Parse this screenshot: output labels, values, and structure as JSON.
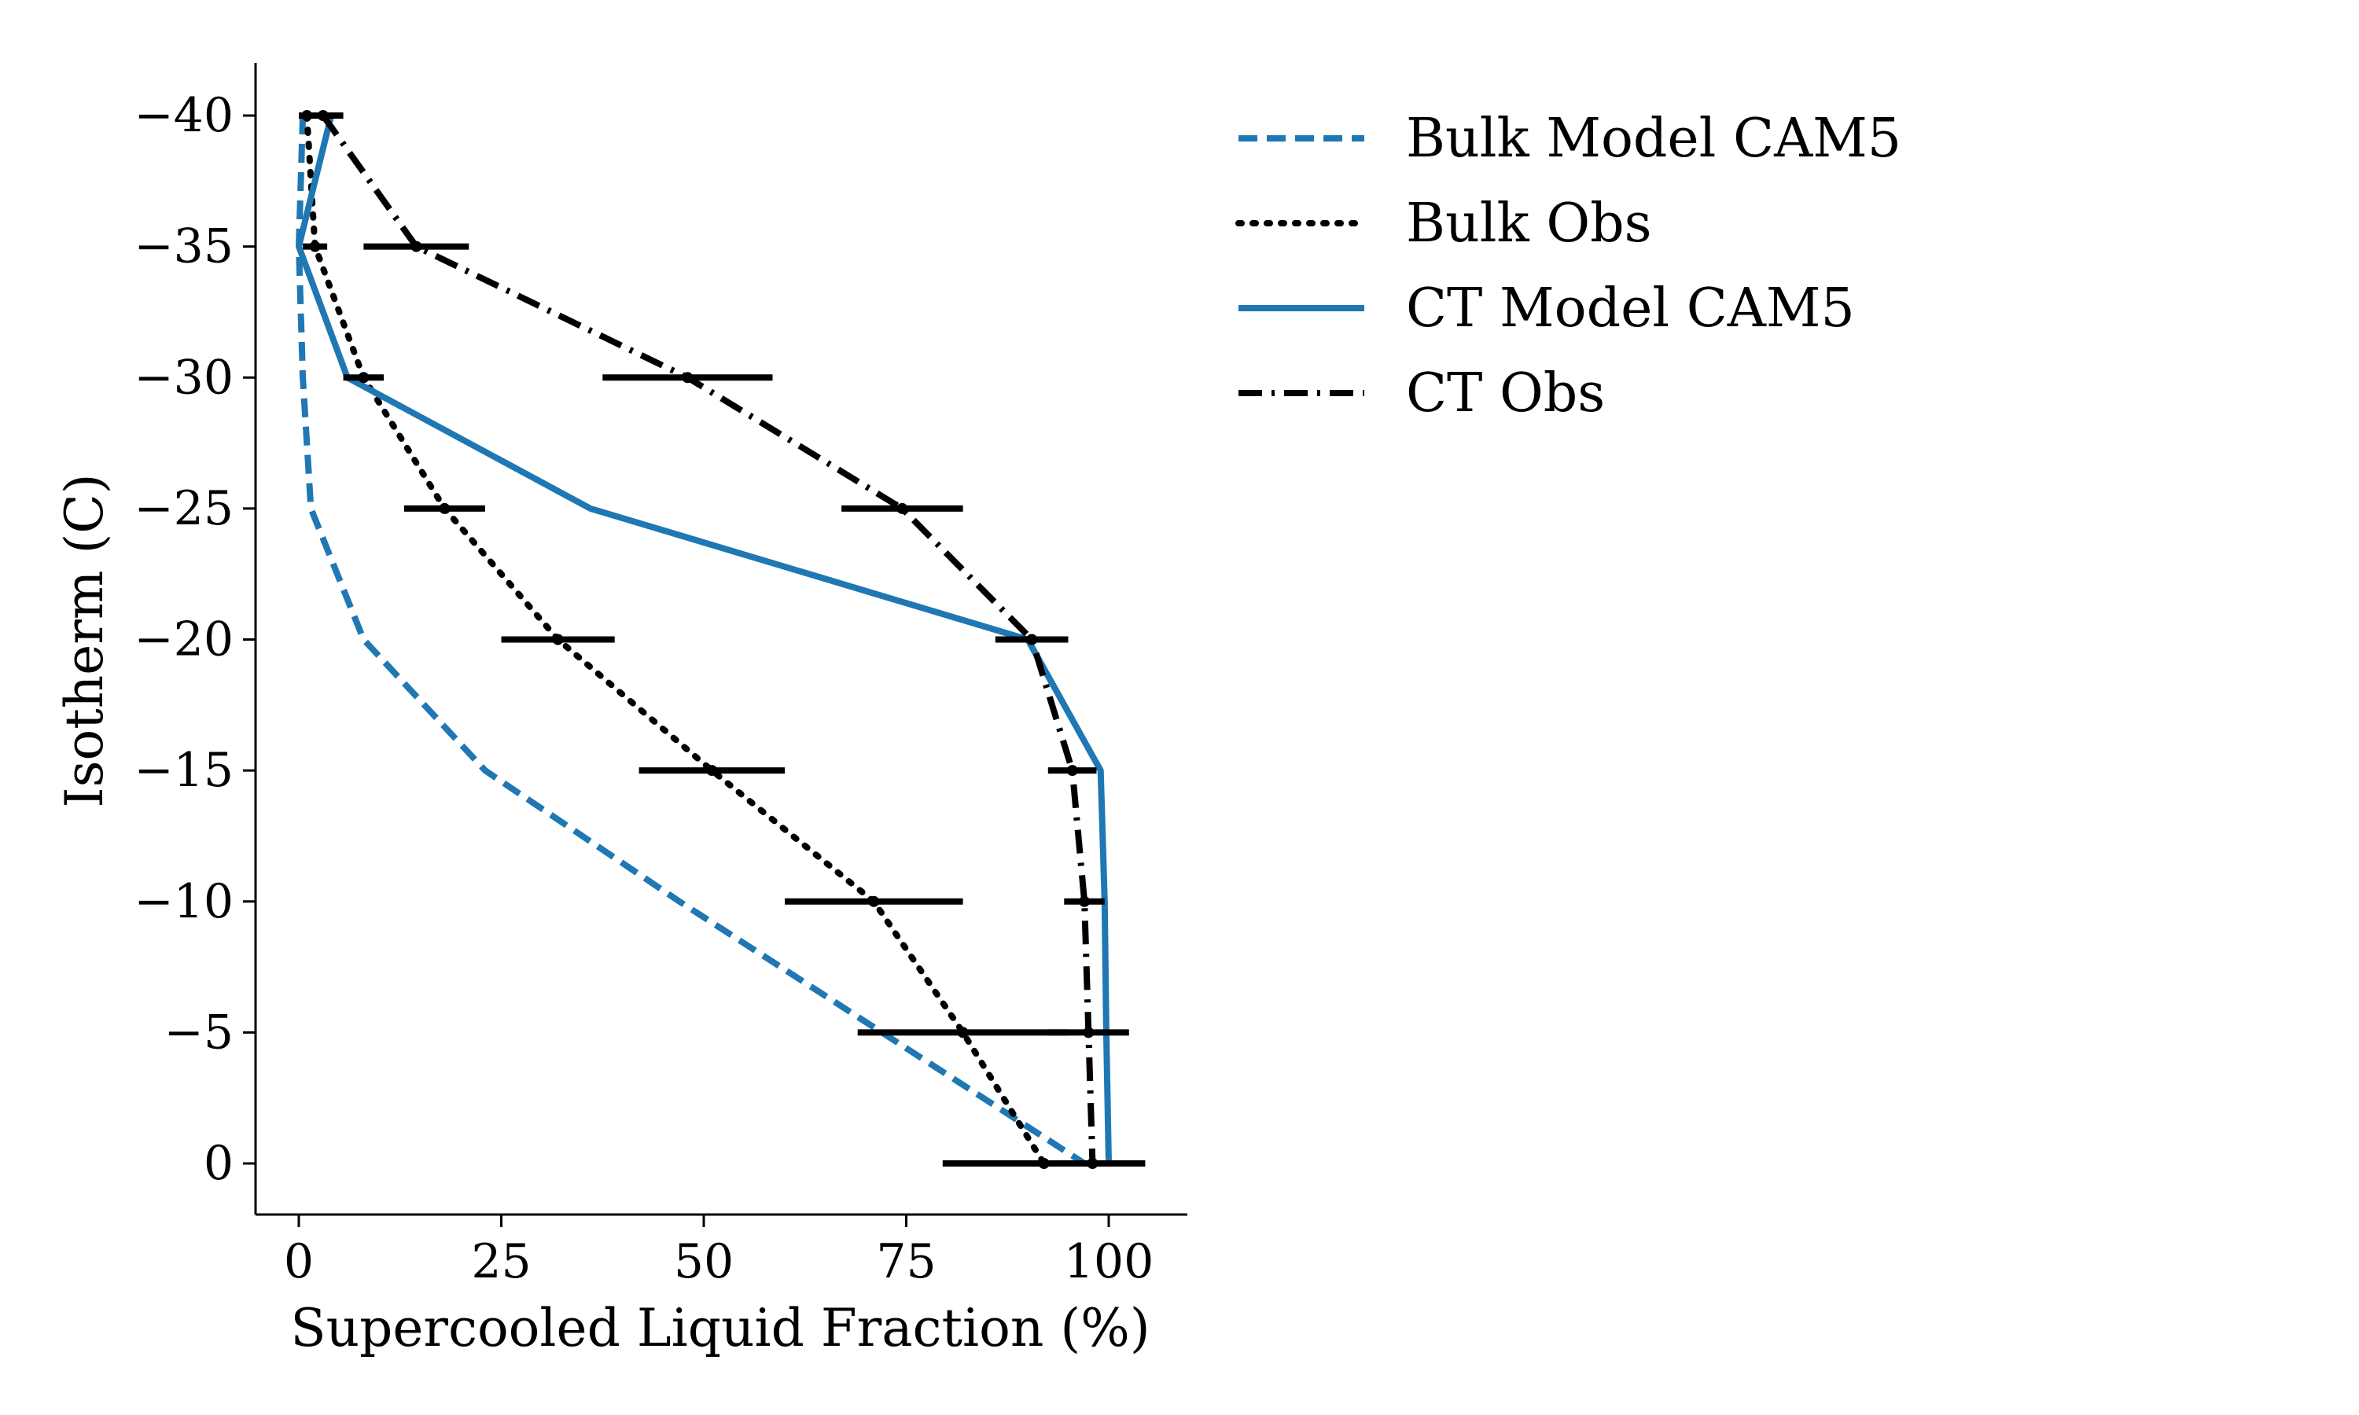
{
  "chart_data": {
    "type": "line",
    "xlabel": "Supercooled Liquid Fraction (%)",
    "ylabel": "Isotherm (C)",
    "xlim": [
      -5,
      110
    ],
    "ylim": [
      2,
      -42
    ],
    "y_inverted": true,
    "xticks": [
      0,
      25,
      50,
      75,
      100
    ],
    "xtick_labels": [
      "0",
      "25",
      "50",
      "75",
      "100"
    ],
    "yticks": [
      -40,
      -35,
      -30,
      -25,
      -20,
      -15,
      -10,
      -5,
      0
    ],
    "ytick_labels": [
      "−40",
      "−35",
      "−30",
      "−25",
      "−20",
      "−15",
      "−10",
      "−5",
      "0"
    ],
    "grid": false,
    "legend_position": "outside-right-top",
    "series": [
      {
        "name": "Bulk Model CAM5",
        "color": "#1f77b4",
        "style": "dashed",
        "points": [
          [
            0.5,
            -40
          ],
          [
            0,
            -35
          ],
          [
            0.5,
            -30
          ],
          [
            1.5,
            -25
          ],
          [
            8,
            -20
          ],
          [
            23,
            -15
          ],
          [
            47,
            -10
          ],
          [
            72,
            -5
          ],
          [
            97,
            0
          ]
        ]
      },
      {
        "name": "Bulk Obs",
        "color": "#000000",
        "style": "dotted",
        "points": [
          [
            1,
            -40
          ],
          [
            2,
            -35
          ],
          [
            8,
            -30
          ],
          [
            18,
            -25
          ],
          [
            32,
            -20
          ],
          [
            51,
            -15
          ],
          [
            71,
            -10
          ],
          [
            82,
            -5
          ],
          [
            92,
            0
          ]
        ],
        "xerr": [
          1,
          1.5,
          2.5,
          5,
          7,
          9,
          11,
          13,
          12.5
        ]
      },
      {
        "name": "CT Model CAM5",
        "color": "#1f77b4",
        "style": "solid",
        "points": [
          [
            4,
            -40
          ],
          [
            0,
            -35
          ],
          [
            6,
            -30
          ],
          [
            36,
            -25
          ],
          [
            90,
            -20
          ],
          [
            99,
            -15
          ],
          [
            99.5,
            -10
          ],
          [
            99.7,
            -5
          ],
          [
            100,
            0
          ]
        ]
      },
      {
        "name": "CT Obs",
        "color": "#000000",
        "style": "dashdot",
        "points": [
          [
            3,
            -40
          ],
          [
            14.5,
            -35
          ],
          [
            48,
            -30
          ],
          [
            74.5,
            -25
          ],
          [
            90.5,
            -20
          ],
          [
            95.5,
            -15
          ],
          [
            97,
            -10
          ],
          [
            97.5,
            -5
          ],
          [
            98,
            0
          ]
        ],
        "xerr": [
          2.5,
          6.5,
          10.5,
          7.5,
          4.5,
          3,
          2.5,
          5,
          6.5
        ]
      }
    ]
  }
}
